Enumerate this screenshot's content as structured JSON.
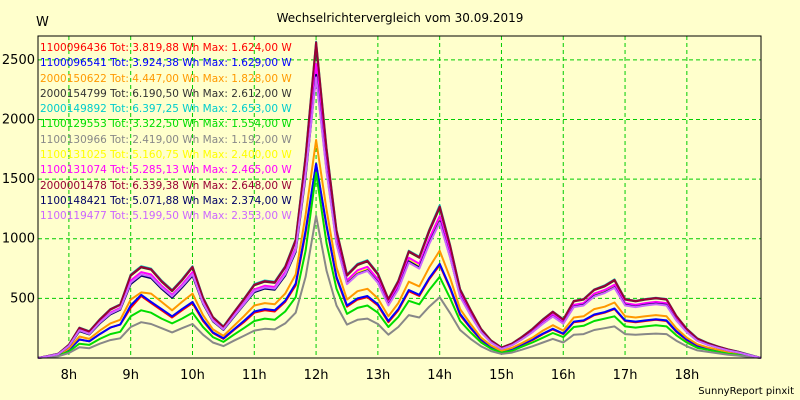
{
  "chart_data": {
    "type": "line",
    "title": "Wechselrichtervergleich vom 30.09.2019",
    "ylabel": "W",
    "footer": "SunnyReport pinxit",
    "ylim": [
      0,
      2700
    ],
    "yticks": [
      500,
      1000,
      1500,
      2000,
      2500
    ],
    "xlim": [
      7.5,
      19.2
    ],
    "x_ticks": [
      {
        "label": "8h",
        "x": 8
      },
      {
        "label": "9h",
        "x": 9
      },
      {
        "label": "10h",
        "x": 10
      },
      {
        "label": "11h",
        "x": 11
      },
      {
        "label": "12h",
        "x": 12
      },
      {
        "label": "13h",
        "x": 13
      },
      {
        "label": "14h",
        "x": 14
      },
      {
        "label": "15h",
        "x": 15
      },
      {
        "label": "16h",
        "x": 16
      },
      {
        "label": "17h",
        "x": 17
      },
      {
        "label": "18h",
        "x": 18
      }
    ],
    "grid": true,
    "x": [
      7.5,
      7.67,
      7.83,
      8.0,
      8.17,
      8.33,
      8.5,
      8.67,
      8.83,
      9.0,
      9.17,
      9.33,
      9.5,
      9.67,
      9.83,
      10.0,
      10.17,
      10.33,
      10.5,
      10.67,
      10.83,
      11.0,
      11.17,
      11.33,
      11.5,
      11.67,
      11.83,
      12.0,
      12.17,
      12.33,
      12.5,
      12.67,
      12.83,
      13.0,
      13.17,
      13.33,
      13.5,
      13.67,
      13.83,
      14.0,
      14.17,
      14.33,
      14.5,
      14.67,
      14.83,
      15.0,
      15.17,
      15.33,
      15.5,
      15.67,
      15.83,
      16.0,
      16.17,
      16.33,
      16.5,
      16.67,
      16.83,
      17.0,
      17.17,
      17.33,
      17.5,
      17.67,
      17.83,
      18.0,
      18.17,
      18.33,
      18.5,
      18.67,
      18.83,
      19.0,
      19.2
    ],
    "series": [
      {
        "name": "1100096436 Tot: 3.819,88 Wh Max: 1.624,00 W",
        "color": "#ff0000",
        "values": [
          0,
          12,
          25,
          70,
          155,
          140,
          200,
          255,
          280,
          420,
          520,
          460,
          400,
          340,
          400,
          460,
          310,
          210,
          160,
          235,
          300,
          380,
          400,
          390,
          470,
          610,
          1050,
          1624,
          1100,
          670,
          430,
          490,
          510,
          440,
          300,
          400,
          560,
          520,
          660,
          780,
          580,
          360,
          250,
          150,
          90,
          50,
          70,
          110,
          150,
          200,
          240,
          200,
          300,
          310,
          360,
          380,
          410,
          310,
          300,
          310,
          320,
          310,
          220,
          150,
          100,
          80,
          60,
          40,
          30,
          15,
          0
        ]
      },
      {
        "name": "1100096541 Tot: 3.924,38 Wh Max: 1.629,00 W",
        "color": "#0000ff",
        "values": [
          0,
          12,
          25,
          70,
          155,
          140,
          200,
          255,
          280,
          440,
          530,
          470,
          410,
          350,
          410,
          470,
          320,
          215,
          165,
          240,
          310,
          390,
          410,
          400,
          480,
          625,
          1070,
          1629,
          1110,
          680,
          440,
          500,
          520,
          450,
          310,
          410,
          570,
          530,
          670,
          790,
          590,
          370,
          255,
          155,
          95,
          55,
          75,
          115,
          155,
          205,
          245,
          205,
          305,
          315,
          365,
          385,
          415,
          315,
          305,
          315,
          325,
          315,
          225,
          155,
          105,
          85,
          65,
          45,
          35,
          18,
          0
        ]
      },
      {
        "name": "2000150622 Tot: 4.447,00 Wh Max: 1.828,00 W",
        "color": "#ff9900",
        "values": [
          0,
          14,
          28,
          80,
          180,
          160,
          230,
          290,
          320,
          490,
          550,
          540,
          470,
          400,
          470,
          540,
          360,
          240,
          185,
          270,
          350,
          440,
          460,
          450,
          540,
          700,
          1200,
          1828,
          1240,
          760,
          490,
          560,
          580,
          500,
          350,
          460,
          640,
          600,
          760,
          900,
          670,
          410,
          285,
          170,
          105,
          60,
          85,
          125,
          170,
          230,
          275,
          230,
          340,
          350,
          410,
          430,
          465,
          350,
          340,
          350,
          360,
          350,
          250,
          170,
          115,
          90,
          70,
          50,
          38,
          20,
          0
        ]
      },
      {
        "name": "2000154799 Tot: 6.190,50 Wh Max: 2.612,00 W",
        "color": "#333333",
        "values": [
          0,
          18,
          36,
          110,
          250,
          220,
          320,
          405,
          445,
          690,
          760,
          740,
          640,
          560,
          650,
          760,
          500,
          340,
          260,
          380,
          490,
          610,
          640,
          630,
          760,
          980,
          1680,
          2612,
          1730,
          1060,
          690,
          780,
          810,
          700,
          490,
          640,
          890,
          840,
          1060,
          1260,
          930,
          570,
          400,
          240,
          145,
          85,
          120,
          175,
          240,
          320,
          385,
          320,
          475,
          490,
          570,
          600,
          650,
          490,
          475,
          490,
          500,
          490,
          350,
          240,
          160,
          125,
          95,
          70,
          52,
          28,
          0
        ]
      },
      {
        "name": "2000149892 Tot: 6.397,25 Wh Max: 2.653,00 W",
        "color": "#00cccc",
        "values": [
          0,
          18,
          37,
          112,
          255,
          225,
          325,
          410,
          450,
          700,
          770,
          750,
          650,
          570,
          660,
          770,
          510,
          345,
          265,
          385,
          495,
          620,
          650,
          640,
          770,
          995,
          1700,
          2653,
          1760,
          1075,
          700,
          790,
          820,
          710,
          495,
          650,
          900,
          850,
          1075,
          1280,
          945,
          580,
          405,
          245,
          148,
          88,
          122,
          178,
          245,
          325,
          390,
          325,
          480,
          495,
          575,
          610,
          660,
          495,
          480,
          495,
          505,
          495,
          355,
          245,
          165,
          128,
          98,
          72,
          54,
          29,
          0
        ]
      },
      {
        "name": "1100129553 Tot: 3.322,50 Wh Max: 1.554,00 W",
        "color": "#00dd00",
        "values": [
          0,
          10,
          20,
          55,
          120,
          110,
          160,
          200,
          220,
          350,
          400,
          380,
          330,
          290,
          330,
          380,
          260,
          175,
          135,
          195,
          250,
          310,
          330,
          320,
          390,
          510,
          900,
          1554,
          960,
          580,
          370,
          420,
          440,
          380,
          260,
          345,
          480,
          450,
          570,
          680,
          500,
          310,
          215,
          130,
          78,
          45,
          60,
          95,
          130,
          170,
          210,
          175,
          260,
          270,
          310,
          330,
          350,
          265,
          255,
          265,
          275,
          265,
          190,
          130,
          85,
          70,
          52,
          36,
          27,
          13,
          0
        ]
      },
      {
        "name": "1100130966 Tot: 2.419,00 Wh Max: 1.192,00 W",
        "color": "#888888",
        "values": [
          0,
          8,
          15,
          42,
          90,
          82,
          120,
          150,
          165,
          260,
          300,
          285,
          250,
          215,
          250,
          285,
          195,
          130,
          100,
          145,
          185,
          230,
          245,
          240,
          290,
          380,
          680,
          1192,
          730,
          440,
          280,
          320,
          330,
          285,
          195,
          260,
          360,
          340,
          430,
          510,
          375,
          235,
          160,
          98,
          58,
          34,
          45,
          70,
          98,
          130,
          160,
          130,
          195,
          200,
          235,
          250,
          265,
          200,
          195,
          200,
          205,
          200,
          145,
          98,
          64,
          52,
          39,
          27,
          20,
          10,
          0
        ]
      },
      {
        "name": "1100131025 Tot: 5.160,75 Wh Max: 2.400,00 W",
        "color": "#ffff00",
        "values": [
          0,
          16,
          33,
          100,
          230,
          200,
          295,
          370,
          410,
          630,
          700,
          680,
          590,
          515,
          600,
          700,
          460,
          312,
          240,
          350,
          450,
          560,
          590,
          580,
          700,
          900,
          1540,
          2400,
          1590,
          975,
          635,
          715,
          745,
          645,
          450,
          590,
          820,
          770,
          975,
          1160,
          855,
          525,
          365,
          220,
          133,
          78,
          110,
          160,
          220,
          295,
          355,
          295,
          435,
          450,
          525,
          555,
          600,
          450,
          435,
          450,
          460,
          450,
          320,
          220,
          147,
          115,
          88,
          64,
          48,
          26,
          0
        ]
      },
      {
        "name": "1100131074 Tot: 5.285,13 Wh Max: 2.465,00 W",
        "color": "#ff00ff",
        "values": [
          0,
          17,
          34,
          103,
          235,
          205,
          300,
          380,
          420,
          650,
          720,
          700,
          605,
          530,
          615,
          720,
          475,
          320,
          245,
          360,
          460,
          575,
          605,
          595,
          720,
          925,
          1580,
          2465,
          1635,
          1000,
          650,
          735,
          765,
          660,
          460,
          605,
          840,
          790,
          1000,
          1190,
          880,
          540,
          375,
          225,
          137,
          80,
          113,
          165,
          225,
          300,
          365,
          300,
          445,
          460,
          540,
          570,
          615,
          460,
          445,
          460,
          470,
          460,
          330,
          225,
          150,
          118,
          90,
          66,
          49,
          26,
          0
        ]
      },
      {
        "name": "2000001478 Tot: 6.339,38 Wh Max: 2.648,00 W",
        "color": "#990033",
        "values": [
          0,
          18,
          36,
          111,
          253,
          223,
          323,
          408,
          448,
          695,
          765,
          745,
          645,
          565,
          655,
          765,
          505,
          343,
          262,
          383,
          493,
          615,
          645,
          635,
          765,
          990,
          1690,
          2648,
          1750,
          1070,
          695,
          785,
          815,
          705,
          493,
          645,
          895,
          845,
          1070,
          1270,
          940,
          575,
          403,
          243,
          147,
          87,
          121,
          177,
          243,
          323,
          388,
          323,
          478,
          493,
          573,
          605,
          655,
          493,
          478,
          493,
          503,
          493,
          353,
          243,
          163,
          127,
          97,
          71,
          53,
          28,
          0
        ]
      },
      {
        "name": "1100148421 Tot: 5.071,88 Wh Max: 2.374,00 W",
        "color": "#000066",
        "values": [
          0,
          16,
          32,
          98,
          225,
          198,
          290,
          365,
          405,
          620,
          690,
          670,
          580,
          505,
          590,
          690,
          455,
          308,
          236,
          345,
          445,
          552,
          582,
          572,
          690,
          890,
          1520,
          2374,
          1575,
          965,
          625,
          705,
          735,
          635,
          445,
          580,
          810,
          760,
          965,
          1145,
          845,
          520,
          360,
          218,
          132,
          77,
          108,
          158,
          218,
          290,
          350,
          290,
          430,
          445,
          520,
          550,
          592,
          445,
          430,
          445,
          455,
          445,
          318,
          218,
          145,
          113,
          87,
          63,
          47,
          25,
          0
        ]
      },
      {
        "name": "1100119477 Tot: 5.199,50 Wh Max: 2.353,00 W",
        "color": "#cc66ff",
        "values": [
          0,
          16,
          33,
          100,
          232,
          202,
          297,
          372,
          412,
          632,
          702,
          682,
          592,
          517,
          602,
          702,
          462,
          313,
          241,
          351,
          451,
          562,
          592,
          582,
          702,
          902,
          1542,
          2353,
          1560,
          955,
          620,
          700,
          730,
          630,
          440,
          575,
          800,
          750,
          955,
          1135,
          840,
          515,
          357,
          216,
          130,
          76,
          107,
          157,
          216,
          288,
          348,
          288,
          427,
          440,
          515,
          545,
          588,
          440,
          427,
          440,
          450,
          440,
          315,
          216,
          144,
          112,
          86,
          63,
          47,
          25,
          0
        ]
      }
    ]
  }
}
